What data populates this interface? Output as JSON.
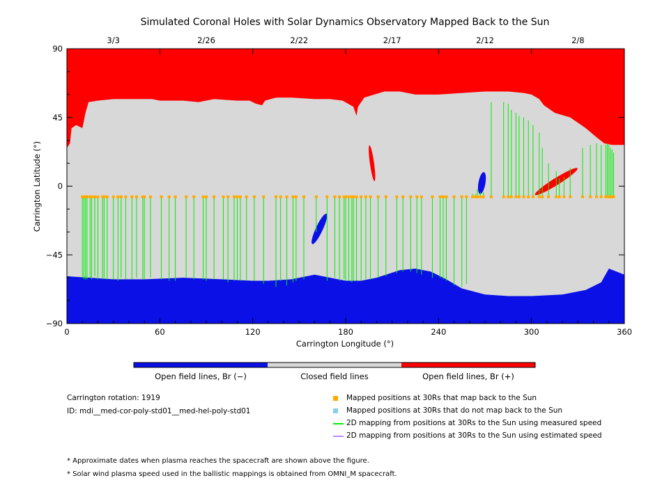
{
  "chart_data": {
    "type": "scatter",
    "title": "Simulated Coronal Holes with Solar Dynamics Observatory Mapped Back to the Sun",
    "xlabel": "Carrington Longitude (°)",
    "ylabel": "Carrington Latitude (°)",
    "xlim": [
      0,
      360
    ],
    "ylim": [
      -90,
      90
    ],
    "xticks": [
      0,
      60,
      120,
      180,
      240,
      300,
      360
    ],
    "yticks": [
      -90,
      -45,
      0,
      45,
      90
    ],
    "top_axis_dates": [
      {
        "lon": 30,
        "label": "3/3"
      },
      {
        "lon": 90,
        "label": "2/26"
      },
      {
        "lon": 150,
        "label": "2/22"
      },
      {
        "lon": 210,
        "label": "2/17"
      },
      {
        "lon": 270,
        "label": "2/12"
      },
      {
        "lon": 330,
        "label": "2/8"
      }
    ],
    "colors": {
      "open_negative": "#0a10e6",
      "closed": "#d8d8d8",
      "open_positive": "#ff0000",
      "mapped_point": "#ffaa00",
      "unmapped_point": "#87ceeb",
      "measured_speed_line": "#00ee00",
      "estimated_speed_line": "#bb88ff"
    },
    "colorbar": [
      {
        "label": "Open field lines, Br (−)",
        "color": "#0a10e6"
      },
      {
        "label": "Closed field lines",
        "color": "#d8d8d8"
      },
      {
        "label": "Open field lines, Br (+)",
        "color": "#ff0000"
      }
    ],
    "north_hole_boundary": [
      [
        0,
        25
      ],
      [
        2,
        28
      ],
      [
        3,
        38
      ],
      [
        6,
        40
      ],
      [
        10,
        38
      ],
      [
        12,
        48
      ],
      [
        14,
        55
      ],
      [
        20,
        56
      ],
      [
        30,
        57
      ],
      [
        45,
        57
      ],
      [
        55,
        57
      ],
      [
        60,
        56
      ],
      [
        75,
        56
      ],
      [
        85,
        55
      ],
      [
        95,
        57
      ],
      [
        110,
        56
      ],
      [
        118,
        56
      ],
      [
        122,
        54
      ],
      [
        126,
        53
      ],
      [
        128,
        56
      ],
      [
        135,
        58
      ],
      [
        145,
        58
      ],
      [
        160,
        57
      ],
      [
        170,
        57
      ],
      [
        178,
        56
      ],
      [
        185,
        52
      ],
      [
        187,
        46
      ],
      [
        188,
        52
      ],
      [
        192,
        58
      ],
      [
        205,
        62
      ],
      [
        215,
        62
      ],
      [
        225,
        60
      ],
      [
        240,
        60
      ],
      [
        255,
        61
      ],
      [
        270,
        62
      ],
      [
        285,
        62
      ],
      [
        295,
        61
      ],
      [
        300,
        60
      ],
      [
        305,
        57
      ],
      [
        308,
        53
      ],
      [
        315,
        48
      ],
      [
        325,
        45
      ],
      [
        335,
        38
      ],
      [
        342,
        32
      ],
      [
        347,
        28
      ],
      [
        352,
        27
      ],
      [
        360,
        27
      ]
    ],
    "south_hole_boundary": [
      [
        0,
        -59
      ],
      [
        15,
        -60
      ],
      [
        30,
        -61
      ],
      [
        50,
        -61
      ],
      [
        75,
        -60
      ],
      [
        100,
        -61
      ],
      [
        120,
        -62
      ],
      [
        130,
        -62
      ],
      [
        145,
        -61
      ],
      [
        160,
        -58
      ],
      [
        170,
        -60
      ],
      [
        180,
        -62
      ],
      [
        190,
        -62
      ],
      [
        200,
        -60
      ],
      [
        215,
        -55
      ],
      [
        225,
        -54
      ],
      [
        235,
        -56
      ],
      [
        245,
        -61
      ],
      [
        255,
        -67
      ],
      [
        270,
        -71
      ],
      [
        285,
        -72
      ],
      [
        300,
        -72
      ],
      [
        320,
        -71
      ],
      [
        335,
        -68
      ],
      [
        345,
        -63
      ],
      [
        350,
        -54
      ],
      [
        355,
        -56
      ],
      [
        360,
        -58
      ]
    ],
    "isolated_holes": [
      {
        "polarity": "negative",
        "lon": 163,
        "lat": -28
      },
      {
        "polarity": "negative",
        "lon": 268,
        "lat": 2
      },
      {
        "polarity": "positive",
        "lon": 197,
        "lat": 15
      },
      {
        "polarity": "positive",
        "lon": 316,
        "lat": 3
      }
    ],
    "mapped_points_latitude": -7,
    "mapped_points_lon": [
      10,
      11,
      12,
      13,
      15,
      16,
      18,
      20,
      23,
      24,
      26,
      30,
      33,
      35,
      38,
      42,
      45,
      49,
      50,
      54,
      61,
      66,
      70,
      77,
      82,
      88,
      90,
      95,
      101,
      104,
      108,
      110,
      112,
      116,
      121,
      127,
      135,
      138,
      142,
      146,
      148,
      153,
      161,
      168,
      173,
      176,
      179,
      180,
      182,
      184,
      185,
      187,
      190,
      193,
      196,
      201,
      206,
      213,
      217,
      222,
      226,
      229,
      236,
      241,
      243,
      245,
      250,
      255,
      258,
      262,
      264,
      265,
      267,
      269,
      274,
      282,
      285,
      287,
      290,
      292,
      295,
      298,
      301,
      305,
      307,
      311,
      316,
      318,
      321,
      325,
      333,
      338,
      342,
      345,
      348,
      349,
      350,
      351,
      352,
      353
    ],
    "measured_lines": [
      [
        10,
        -60
      ],
      [
        11,
        -61
      ],
      [
        12,
        -61
      ],
      [
        13,
        -61
      ],
      [
        15,
        -60
      ],
      [
        16,
        -61
      ],
      [
        18,
        -59
      ],
      [
        20,
        -61
      ],
      [
        23,
        -61
      ],
      [
        24,
        -60
      ],
      [
        26,
        -61
      ],
      [
        30,
        -61
      ],
      [
        33,
        -62
      ],
      [
        35,
        -60
      ],
      [
        38,
        -61
      ],
      [
        42,
        -61
      ],
      [
        45,
        -60
      ],
      [
        49,
        -61
      ],
      [
        50,
        -61
      ],
      [
        54,
        -60
      ],
      [
        61,
        -61
      ],
      [
        66,
        -62
      ],
      [
        70,
        -62
      ],
      [
        77,
        -60
      ],
      [
        82,
        -61
      ],
      [
        88,
        -61
      ],
      [
        90,
        -62
      ],
      [
        95,
        -61
      ],
      [
        101,
        -61
      ],
      [
        104,
        -63
      ],
      [
        108,
        -62
      ],
      [
        110,
        -61
      ],
      [
        112,
        -62
      ],
      [
        116,
        -62
      ],
      [
        121,
        -62
      ],
      [
        127,
        -64
      ],
      [
        135,
        -66
      ],
      [
        138,
        -62
      ],
      [
        142,
        -65
      ],
      [
        146,
        -63
      ],
      [
        148,
        -62
      ],
      [
        153,
        -61
      ],
      [
        161,
        -30
      ],
      [
        168,
        -62
      ],
      [
        173,
        -60
      ],
      [
        176,
        -62
      ],
      [
        179,
        -61
      ],
      [
        180,
        -62
      ],
      [
        182,
        -62
      ],
      [
        184,
        -63
      ],
      [
        185,
        -62
      ],
      [
        187,
        -62
      ],
      [
        190,
        -62
      ],
      [
        193,
        -61
      ],
      [
        196,
        -61
      ],
      [
        201,
        -60
      ],
      [
        206,
        -59
      ],
      [
        213,
        -57
      ],
      [
        217,
        -56
      ],
      [
        222,
        -56
      ],
      [
        226,
        -57
      ],
      [
        229,
        -58
      ],
      [
        236,
        -60
      ],
      [
        241,
        -60
      ],
      [
        243,
        -61
      ],
      [
        245,
        -62
      ],
      [
        250,
        -65
      ],
      [
        255,
        -66
      ],
      [
        258,
        -64
      ],
      [
        262,
        -5
      ],
      [
        264,
        -5
      ],
      [
        265,
        -2
      ],
      [
        267,
        -4
      ],
      [
        269,
        -4
      ],
      [
        274,
        55
      ],
      [
        282,
        55
      ],
      [
        285,
        54
      ],
      [
        287,
        50
      ],
      [
        290,
        48
      ],
      [
        292,
        46
      ],
      [
        295,
        45
      ],
      [
        298,
        43
      ],
      [
        301,
        40
      ],
      [
        305,
        35
      ],
      [
        307,
        25
      ],
      [
        311,
        15
      ],
      [
        316,
        10
      ],
      [
        318,
        5
      ],
      [
        321,
        6
      ],
      [
        325,
        12
      ],
      [
        333,
        25
      ],
      [
        338,
        27
      ],
      [
        342,
        28
      ],
      [
        345,
        27
      ],
      [
        348,
        27
      ],
      [
        349,
        28
      ],
      [
        350,
        27
      ],
      [
        351,
        25
      ],
      [
        352,
        24
      ],
      [
        353,
        22
      ]
    ]
  },
  "info": {
    "rotation": "Carrington rotation: 1919",
    "id": "ID: mdi__med-cor-poly-std01__med-hel-poly-std01"
  },
  "legend": {
    "mapped": "Mapped positions at 30Rs that map back to the Sun",
    "unmapped": "Mapped positions at 30Rs that do not map back to the Sun",
    "measured": "2D mapping from positions at 30Rs to the Sun using measured speed",
    "estimated": "2D mapping from positions at 30Rs to the Sun using estimated speed"
  },
  "notes": {
    "dates": "* Approximate dates when plasma reaches the spacecraft are shown above the figure.",
    "speed": "* Solar wind plasma speed used in the ballistic mappings is obtained from OMNI_M spacecraft."
  }
}
